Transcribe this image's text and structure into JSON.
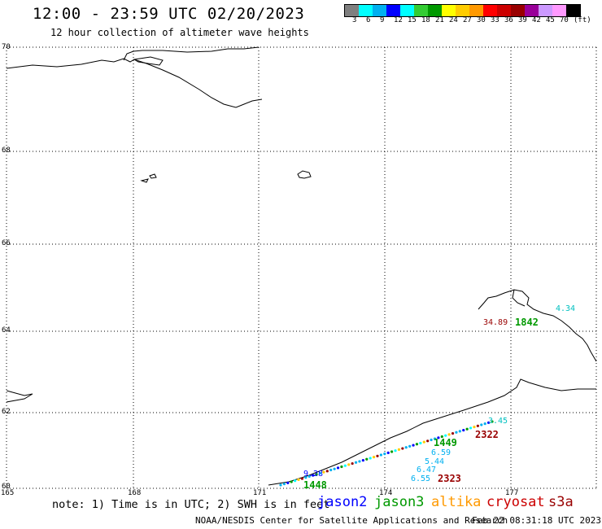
{
  "header": {
    "title": "12:00 - 23:59 UTC 02/20/2023",
    "subtitle": "12 hour collection of altimeter wave heights"
  },
  "legend": {
    "colors": [
      "#7f7f7f",
      "#00ffff",
      "#00b0f0",
      "#0000ff",
      "#00ffff",
      "#33cc33",
      "#009900",
      "#ffff00",
      "#ffcc00",
      "#ff9900",
      "#ff0000",
      "#cc0000",
      "#990000",
      "#990099",
      "#cc99ff",
      "#ff99ff",
      "#000000"
    ],
    "labels": [
      "3",
      "6",
      "9",
      "12",
      "15",
      "18",
      "21",
      "24",
      "27",
      "30",
      "33",
      "36",
      "39",
      "42",
      "45",
      "70",
      "(ft)"
    ]
  },
  "axes": {
    "lat_labels": [
      "70",
      "68",
      "66",
      "64",
      "62",
      "60"
    ],
    "lon_labels": [
      "165",
      "168",
      "171",
      "174",
      "177"
    ]
  },
  "observations": [
    {
      "text": "34.89",
      "color": "#990000"
    },
    {
      "text": "1842",
      "color": "#009900"
    },
    {
      "text": "4.34",
      "color": "#00c0c0"
    },
    {
      "text": "3.45",
      "color": "#00c0c0"
    },
    {
      "text": "2322",
      "color": "#990000"
    },
    {
      "text": "1449",
      "color": "#009900"
    },
    {
      "text": "6.59",
      "color": "#00b0f0"
    },
    {
      "text": "5.44",
      "color": "#00b0f0"
    },
    {
      "text": "6.47",
      "color": "#00b0f0"
    },
    {
      "text": "6.55",
      "color": "#00b0f0"
    },
    {
      "text": "2323",
      "color": "#990000"
    },
    {
      "text": "9.28",
      "color": "#0000ff"
    },
    {
      "text": "1448",
      "color": "#009900"
    }
  ],
  "note": "note: 1) Time is in UTC; 2) SWH is in feet",
  "satellites": [
    {
      "name": "jason2",
      "color": "#0000ff"
    },
    {
      "name": "jason3",
      "color": "#009900"
    },
    {
      "name": "altika",
      "color": "#ff9900"
    },
    {
      "name": "cryosat",
      "color": "#cc0000"
    },
    {
      "name": "s3a",
      "color": "#990000"
    }
  ],
  "footer": {
    "credit": "NOAA/NESDIS Center for Satellite Applications and Research",
    "timestamp": "Feb 22 08:31:18 UTC 2023"
  }
}
